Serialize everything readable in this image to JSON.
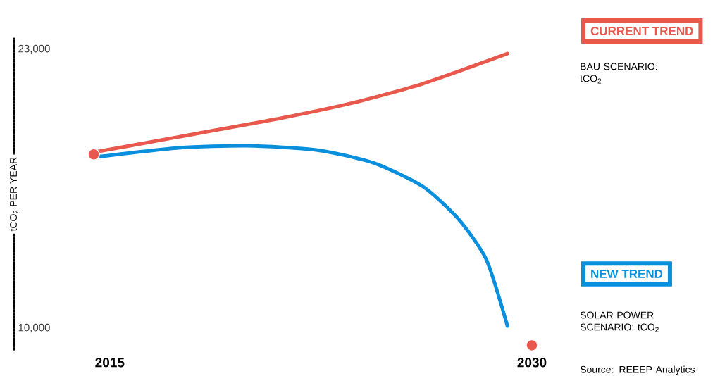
{
  "chart_data": {
    "type": "line",
    "ylabel": "tCO$_{2}$ PER YEAR",
    "xlim": [
      2011.6,
      2030
    ],
    "ylim": [
      9000,
      23500
    ],
    "xticks": [
      2015,
      2030
    ],
    "yticks": [
      {
        "value": 23000,
        "label": "23,000"
      },
      {
        "value": 10000,
        "label": "10,000"
      }
    ],
    "legend": "right",
    "series": [
      {
        "name": "CURRENT TREND",
        "color": "#e8584c",
        "x": [
          2014.43,
          2016.13,
          2018.63,
          2021.13,
          2023.63,
          2026.13,
          2029.13
        ],
        "values": [
          18200,
          18600,
          19200,
          19800,
          20500,
          21400,
          22800
        ]
      },
      {
        "name": "NEW TREND",
        "color": "#0a8fdc",
        "x": [
          2014.63,
          2017.38,
          2019.88,
          2022.38,
          2024.38,
          2026.13,
          2027.38,
          2028.38,
          2029.13
        ],
        "values": [
          18000,
          18400,
          18500,
          18300,
          17700,
          16600,
          15100,
          13200,
          10100
        ]
      },
      {
        "type": "scatter",
        "color": "#e8584c",
        "x": [
          2014.43,
          2030
        ],
        "values": [
          18100,
          9200
        ]
      }
    ],
    "annotations": [
      "BAU SCENARIO: tCO$_{2}$",
      "SOLAR POWER SCENARIO: tCO$_{2}$",
      "Source: REEEP Analytics"
    ]
  }
}
